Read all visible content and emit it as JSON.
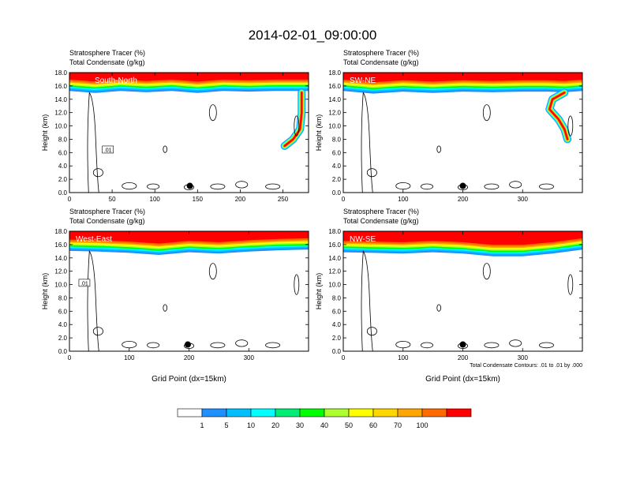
{
  "title": "2014-02-01_09:00:00",
  "footnote": "Total Condensate Contours: .01 to .01 by .000",
  "colors": {
    "levels": [
      "#ffffff",
      "#1e90ff",
      "#00bfff",
      "#00ffff",
      "#00ee76",
      "#00ff00",
      "#adff2f",
      "#ffff00",
      "#ffd700",
      "#ffa500",
      "#ff6a00",
      "#ff0000"
    ],
    "contour": "#000000",
    "axis": "#000000"
  },
  "chart_data": [
    {
      "type": "heatmap",
      "panel": "South-North",
      "left_title_1": "Stratosphere Tracer   (%)",
      "left_title_2": "Total Condensate   (g/kg)",
      "ylabel": "Height (km)",
      "xlabel": "",
      "xlim": [
        0,
        280
      ],
      "ylim": [
        0,
        18
      ],
      "xticks": [
        "0",
        "50",
        "100",
        "150",
        "200",
        "250"
      ],
      "xtick_values": [
        0,
        50,
        100,
        150,
        200,
        250
      ],
      "yticks": [
        "0.0",
        "2.0",
        "4.0",
        "6.0",
        "8.0",
        "10.0",
        "12.0",
        "14.0",
        "16.0",
        "18.0"
      ],
      "contour_label": ".01",
      "contour_label_pos": [
        45,
        6.4
      ],
      "marker": [
        141,
        1.0
      ],
      "tropopause": [
        [
          0,
          15.6
        ],
        [
          30,
          15.3
        ],
        [
          60,
          15.6
        ],
        [
          90,
          15.4
        ],
        [
          120,
          15.6
        ],
        [
          150,
          15.3
        ],
        [
          180,
          15.6
        ],
        [
          210,
          15.5
        ],
        [
          240,
          15.6
        ],
        [
          280,
          15.6
        ]
      ],
      "plume": [
        [
          252,
          7.0
        ],
        [
          262,
          8.0
        ],
        [
          270,
          9.5
        ],
        [
          272,
          12.0
        ],
        [
          272,
          15.0
        ]
      ]
    },
    {
      "type": "heatmap",
      "panel": "SW-NE",
      "left_title_1": "Stratosphere Tracer   (%)",
      "left_title_2": "Total Condensate   (g/kg)",
      "ylabel": "Height (km)",
      "xlabel": "",
      "xlim": [
        0,
        400
      ],
      "ylim": [
        0,
        18
      ],
      "xticks": [
        "0",
        "100",
        "200",
        "300"
      ],
      "xtick_values": [
        0,
        100,
        200,
        300
      ],
      "yticks": [
        "0.0",
        "2.0",
        "4.0",
        "6.0",
        "8.0",
        "10.0",
        "12.0",
        "14.0",
        "16.0",
        "18.0"
      ],
      "contour_label": "",
      "contour_label_pos": [
        0,
        0
      ],
      "marker": [
        200,
        1.0
      ],
      "tropopause": [
        [
          0,
          15.6
        ],
        [
          50,
          15.2
        ],
        [
          100,
          15.5
        ],
        [
          150,
          15.3
        ],
        [
          200,
          15.5
        ],
        [
          250,
          15.4
        ],
        [
          300,
          15.5
        ],
        [
          340,
          15.5
        ],
        [
          370,
          15.4
        ],
        [
          400,
          15.6
        ]
      ],
      "plume": [
        [
          375,
          8.0
        ],
        [
          370,
          9.5
        ],
        [
          360,
          11.0
        ],
        [
          345,
          12.5
        ],
        [
          350,
          14.0
        ],
        [
          370,
          15.0
        ]
      ]
    },
    {
      "type": "heatmap",
      "panel": "West-East",
      "left_title_1": "Stratosphere Tracer   (%)",
      "left_title_2": "Total Condensate   (g/kg)",
      "ylabel": "Height (km)",
      "xlabel": "Grid Point (dx=15km)",
      "xlim": [
        0,
        400
      ],
      "ylim": [
        0,
        18
      ],
      "xticks": [
        "0",
        "100",
        "200",
        "300"
      ],
      "xtick_values": [
        0,
        100,
        200,
        300
      ],
      "yticks": [
        "0.0",
        "2.0",
        "4.0",
        "6.0",
        "8.0",
        "10.0",
        "12.0",
        "14.0",
        "16.0",
        "18.0"
      ],
      "contour_label": ".01",
      "contour_label_pos": [
        25,
        10.2
      ],
      "marker": [
        198,
        1.0
      ],
      "tropopause": [
        [
          0,
          15.4
        ],
        [
          50,
          15.3
        ],
        [
          100,
          15.1
        ],
        [
          150,
          14.8
        ],
        [
          200,
          15.2
        ],
        [
          250,
          15.0
        ],
        [
          300,
          15.3
        ],
        [
          350,
          15.5
        ],
        [
          400,
          15.6
        ]
      ],
      "plume": []
    },
    {
      "type": "heatmap",
      "panel": "NW-SE",
      "left_title_1": "Stratosphere Tracer   (%)",
      "left_title_2": "Total Condensate   (g/kg)",
      "ylabel": "Height (km)",
      "xlabel": "Grid Point (dx=15km)",
      "xlim": [
        0,
        400
      ],
      "ylim": [
        0,
        18
      ],
      "xticks": [
        "0",
        "100",
        "200",
        "300"
      ],
      "xtick_values": [
        0,
        100,
        200,
        300
      ],
      "yticks": [
        "0.0",
        "2.0",
        "4.0",
        "6.0",
        "8.0",
        "10.0",
        "12.0",
        "14.0",
        "16.0",
        "18.0"
      ],
      "contour_label": "",
      "contour_label_pos": [
        0,
        0
      ],
      "marker": [
        200,
        1.0
      ],
      "tropopause": [
        [
          0,
          15.2
        ],
        [
          50,
          15.1
        ],
        [
          100,
          15.0
        ],
        [
          150,
          15.2
        ],
        [
          200,
          15.0
        ],
        [
          250,
          14.6
        ],
        [
          300,
          14.6
        ],
        [
          350,
          15.0
        ],
        [
          400,
          15.6
        ]
      ],
      "plume": []
    }
  ],
  "colorbar": {
    "labels": [
      "1",
      "5",
      "10",
      "20",
      "30",
      "40",
      "50",
      "60",
      "70",
      "100"
    ]
  }
}
